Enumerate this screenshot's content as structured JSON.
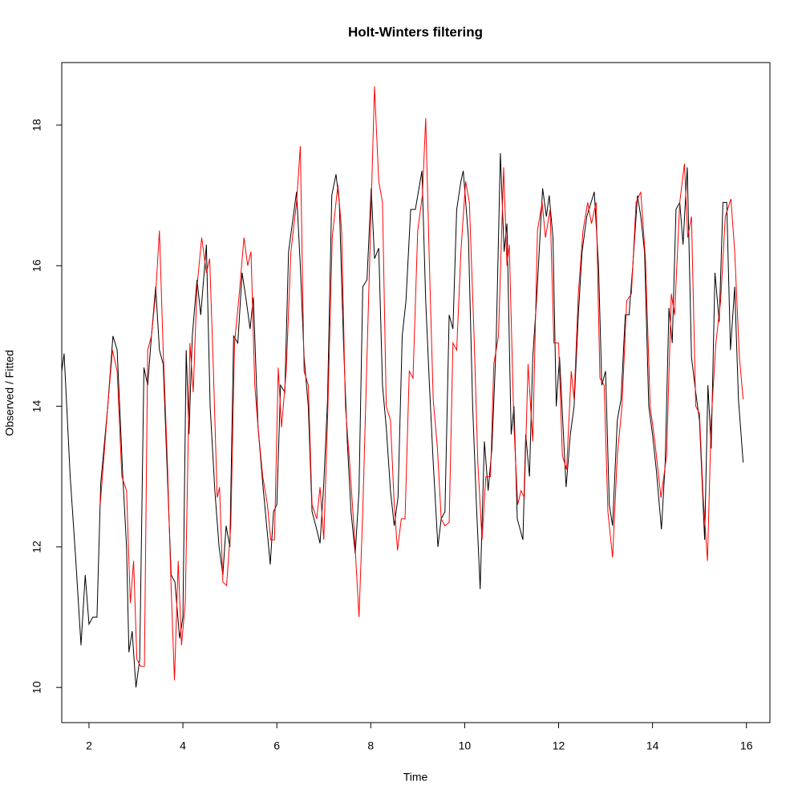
{
  "chart_data": {
    "type": "line",
    "title": "Holt-Winters filtering",
    "x_label": "Time",
    "y_label": "Observed / Fitted",
    "xlim": [
      1.42,
      16.5
    ],
    "ylim": [
      9.5,
      18.89
    ],
    "xticks": [
      2,
      4,
      6,
      8,
      10,
      12,
      14,
      16
    ],
    "yticks": [
      10,
      12,
      14,
      16,
      18
    ],
    "grid": false,
    "series": [
      {
        "color": "#000000",
        "x": [
          1.42,
          1.47,
          1.6,
          1.72,
          1.83,
          1.92,
          2.0,
          2.08,
          2.17,
          2.25,
          2.4,
          2.51,
          2.6,
          2.72,
          2.8,
          2.85,
          2.92,
          3.0,
          3.08,
          3.17,
          3.25,
          3.33,
          3.42,
          3.5,
          3.58,
          3.67,
          3.75,
          3.83,
          3.93,
          4.0,
          4.07,
          4.13,
          4.2,
          4.3,
          4.38,
          4.5,
          4.58,
          4.68,
          4.77,
          4.85,
          4.92,
          5.0,
          5.08,
          5.17,
          5.26,
          5.35,
          5.43,
          5.5,
          5.6,
          5.7,
          5.86,
          5.93,
          6.0,
          6.08,
          6.17,
          6.25,
          6.35,
          6.42,
          6.5,
          6.58,
          6.67,
          6.75,
          6.83,
          6.92,
          7.0,
          7.08,
          7.17,
          7.26,
          7.33,
          7.42,
          7.5,
          7.58,
          7.67,
          7.75,
          7.83,
          7.92,
          8.01,
          8.08,
          8.17,
          8.25,
          8.33,
          8.42,
          8.5,
          8.58,
          8.67,
          8.75,
          8.85,
          8.95,
          9.09,
          9.17,
          9.25,
          9.33,
          9.43,
          9.5,
          9.58,
          9.67,
          9.75,
          9.83,
          9.92,
          9.97,
          10.08,
          10.17,
          10.25,
          10.33,
          10.42,
          10.5,
          10.58,
          10.67,
          10.76,
          10.84,
          10.9,
          10.99,
          11.05,
          11.12,
          11.24,
          11.3,
          11.38,
          11.45,
          11.53,
          11.66,
          11.74,
          11.8,
          11.88,
          11.95,
          12.02,
          12.16,
          12.25,
          12.33,
          12.42,
          12.5,
          12.6,
          12.76,
          12.85,
          12.92,
          13.0,
          13.08,
          13.15,
          13.25,
          13.33,
          13.42,
          13.5,
          13.58,
          13.68,
          13.75,
          13.83,
          13.92,
          14.0,
          14.08,
          14.19,
          14.27,
          14.35,
          14.42,
          14.5,
          14.58,
          14.65,
          14.74,
          14.83,
          14.92,
          15.0,
          15.11,
          15.18,
          15.25,
          15.33,
          15.42,
          15.5,
          15.58,
          15.66,
          15.75,
          15.83,
          15.93
        ],
        "values": [
          14.5,
          14.75,
          13.0,
          11.8,
          10.6,
          11.6,
          10.9,
          11.0,
          11.0,
          12.9,
          14.0,
          15.0,
          14.8,
          13.0,
          12.0,
          10.5,
          10.8,
          10.0,
          10.4,
          14.55,
          14.3,
          15.0,
          15.7,
          14.8,
          14.6,
          13.0,
          11.6,
          11.5,
          10.7,
          11.0,
          14.8,
          13.6,
          15.0,
          15.8,
          15.3,
          16.3,
          14.0,
          12.8,
          12.0,
          11.6,
          12.3,
          12.0,
          15.0,
          14.9,
          15.9,
          15.5,
          15.1,
          15.55,
          13.7,
          12.9,
          11.75,
          12.5,
          12.6,
          14.3,
          14.2,
          16.2,
          16.7,
          17.05,
          16.0,
          14.7,
          14.0,
          12.5,
          12.3,
          12.05,
          12.9,
          14.1,
          17.0,
          17.3,
          16.9,
          14.9,
          13.5,
          12.5,
          11.9,
          12.8,
          15.7,
          15.8,
          17.1,
          16.1,
          16.25,
          14.3,
          13.7,
          12.8,
          12.3,
          12.7,
          15.0,
          15.5,
          16.8,
          16.8,
          17.35,
          15.5,
          14.3,
          13.2,
          12.0,
          12.4,
          12.5,
          15.3,
          15.1,
          16.8,
          17.2,
          17.35,
          16.4,
          14.0,
          12.6,
          11.4,
          13.5,
          12.8,
          13.4,
          14.9,
          17.6,
          16.2,
          16.6,
          13.6,
          14.0,
          12.4,
          12.1,
          13.6,
          13.0,
          14.7,
          15.5,
          17.1,
          16.7,
          17.0,
          16.4,
          14.0,
          14.7,
          12.85,
          13.6,
          14.0,
          15.3,
          16.2,
          16.7,
          17.05,
          16.0,
          14.3,
          14.5,
          12.6,
          12.3,
          13.8,
          14.1,
          15.3,
          15.3,
          16.0,
          17.0,
          16.7,
          16.2,
          14.0,
          13.6,
          13.1,
          12.25,
          13.2,
          15.4,
          14.9,
          16.8,
          16.9,
          16.3,
          17.4,
          14.7,
          14.2,
          13.8,
          12.1,
          14.3,
          13.4,
          15.9,
          15.2,
          16.9,
          16.9,
          14.8,
          15.7,
          14.1,
          13.2
        ]
      },
      {
        "color": "#ff0000",
        "x": [
          2.24,
          2.4,
          2.5,
          2.6,
          2.7,
          2.8,
          2.88,
          2.95,
          3.02,
          3.1,
          3.18,
          3.25,
          3.33,
          3.42,
          3.5,
          3.58,
          3.67,
          3.75,
          3.82,
          3.9,
          3.97,
          4.05,
          4.15,
          4.22,
          4.3,
          4.4,
          4.5,
          4.57,
          4.65,
          4.73,
          4.78,
          4.85,
          4.93,
          5.02,
          5.1,
          5.2,
          5.3,
          5.38,
          5.45,
          5.53,
          5.6,
          5.7,
          5.8,
          5.87,
          5.95,
          6.03,
          6.1,
          6.2,
          6.3,
          6.42,
          6.5,
          6.58,
          6.67,
          6.75,
          6.85,
          6.92,
          7.0,
          7.08,
          7.18,
          7.3,
          7.38,
          7.46,
          7.55,
          7.65,
          7.75,
          7.83,
          7.92,
          8.08,
          8.17,
          8.25,
          8.33,
          8.42,
          8.5,
          8.57,
          8.65,
          8.73,
          8.82,
          8.9,
          9.0,
          9.1,
          9.17,
          9.25,
          9.33,
          9.42,
          9.5,
          9.58,
          9.67,
          9.75,
          9.83,
          9.92,
          10.02,
          10.1,
          10.2,
          10.28,
          10.37,
          10.45,
          10.55,
          10.62,
          10.72,
          10.83,
          10.9,
          10.95,
          11.05,
          11.13,
          11.2,
          11.27,
          11.35,
          11.45,
          11.55,
          11.65,
          11.72,
          11.82,
          11.9,
          12.0,
          12.08,
          12.17,
          12.27,
          12.33,
          12.42,
          12.52,
          12.62,
          12.7,
          12.8,
          12.88,
          12.97,
          13.05,
          13.15,
          13.25,
          13.35,
          13.45,
          13.55,
          13.65,
          13.75,
          13.85,
          13.95,
          14.05,
          14.18,
          14.3,
          14.4,
          14.47,
          14.58,
          14.68,
          14.75,
          14.83,
          14.92,
          15.0,
          15.08,
          15.17,
          15.25,
          15.35,
          15.45,
          15.55,
          15.67,
          15.75,
          15.85,
          15.93
        ],
        "values": [
          12.6,
          14.0,
          14.8,
          14.5,
          13.0,
          12.8,
          11.2,
          11.8,
          10.4,
          10.3,
          10.3,
          14.8,
          15.0,
          15.6,
          16.5,
          14.8,
          13.2,
          11.4,
          10.1,
          11.8,
          10.6,
          11.2,
          14.9,
          14.2,
          15.7,
          16.4,
          15.9,
          16.1,
          14.5,
          12.7,
          12.85,
          11.5,
          11.45,
          12.3,
          14.9,
          15.6,
          16.4,
          16.0,
          16.2,
          14.3,
          13.7,
          13.0,
          12.6,
          12.1,
          12.1,
          14.55,
          13.7,
          14.5,
          16.2,
          16.9,
          17.7,
          14.5,
          14.3,
          12.6,
          12.4,
          12.85,
          12.1,
          13.8,
          16.4,
          17.15,
          16.5,
          14.0,
          13.2,
          12.2,
          11.0,
          12.5,
          14.7,
          18.55,
          17.2,
          16.9,
          14.0,
          13.8,
          12.6,
          11.95,
          12.4,
          12.4,
          14.5,
          14.4,
          16.5,
          17.0,
          18.1,
          16.0,
          14.1,
          13.4,
          12.4,
          12.3,
          12.35,
          14.9,
          14.8,
          16.2,
          17.2,
          16.9,
          15.0,
          13.2,
          12.1,
          13.0,
          13.0,
          14.6,
          15.0,
          17.4,
          16.0,
          16.3,
          13.7,
          12.6,
          12.8,
          12.7,
          14.6,
          13.5,
          16.5,
          16.9,
          16.4,
          16.8,
          14.9,
          14.9,
          13.3,
          13.1,
          14.5,
          14.1,
          15.6,
          16.5,
          16.9,
          16.6,
          16.9,
          14.4,
          14.3,
          12.5,
          11.85,
          13.3,
          14.0,
          15.5,
          15.6,
          16.9,
          17.05,
          16.1,
          14.0,
          13.5,
          12.7,
          13.3,
          15.6,
          15.3,
          16.9,
          17.45,
          16.4,
          16.7,
          14.0,
          13.9,
          12.7,
          11.8,
          13.8,
          14.9,
          15.5,
          16.7,
          16.95,
          16.2,
          14.7,
          14.1
        ]
      }
    ]
  }
}
